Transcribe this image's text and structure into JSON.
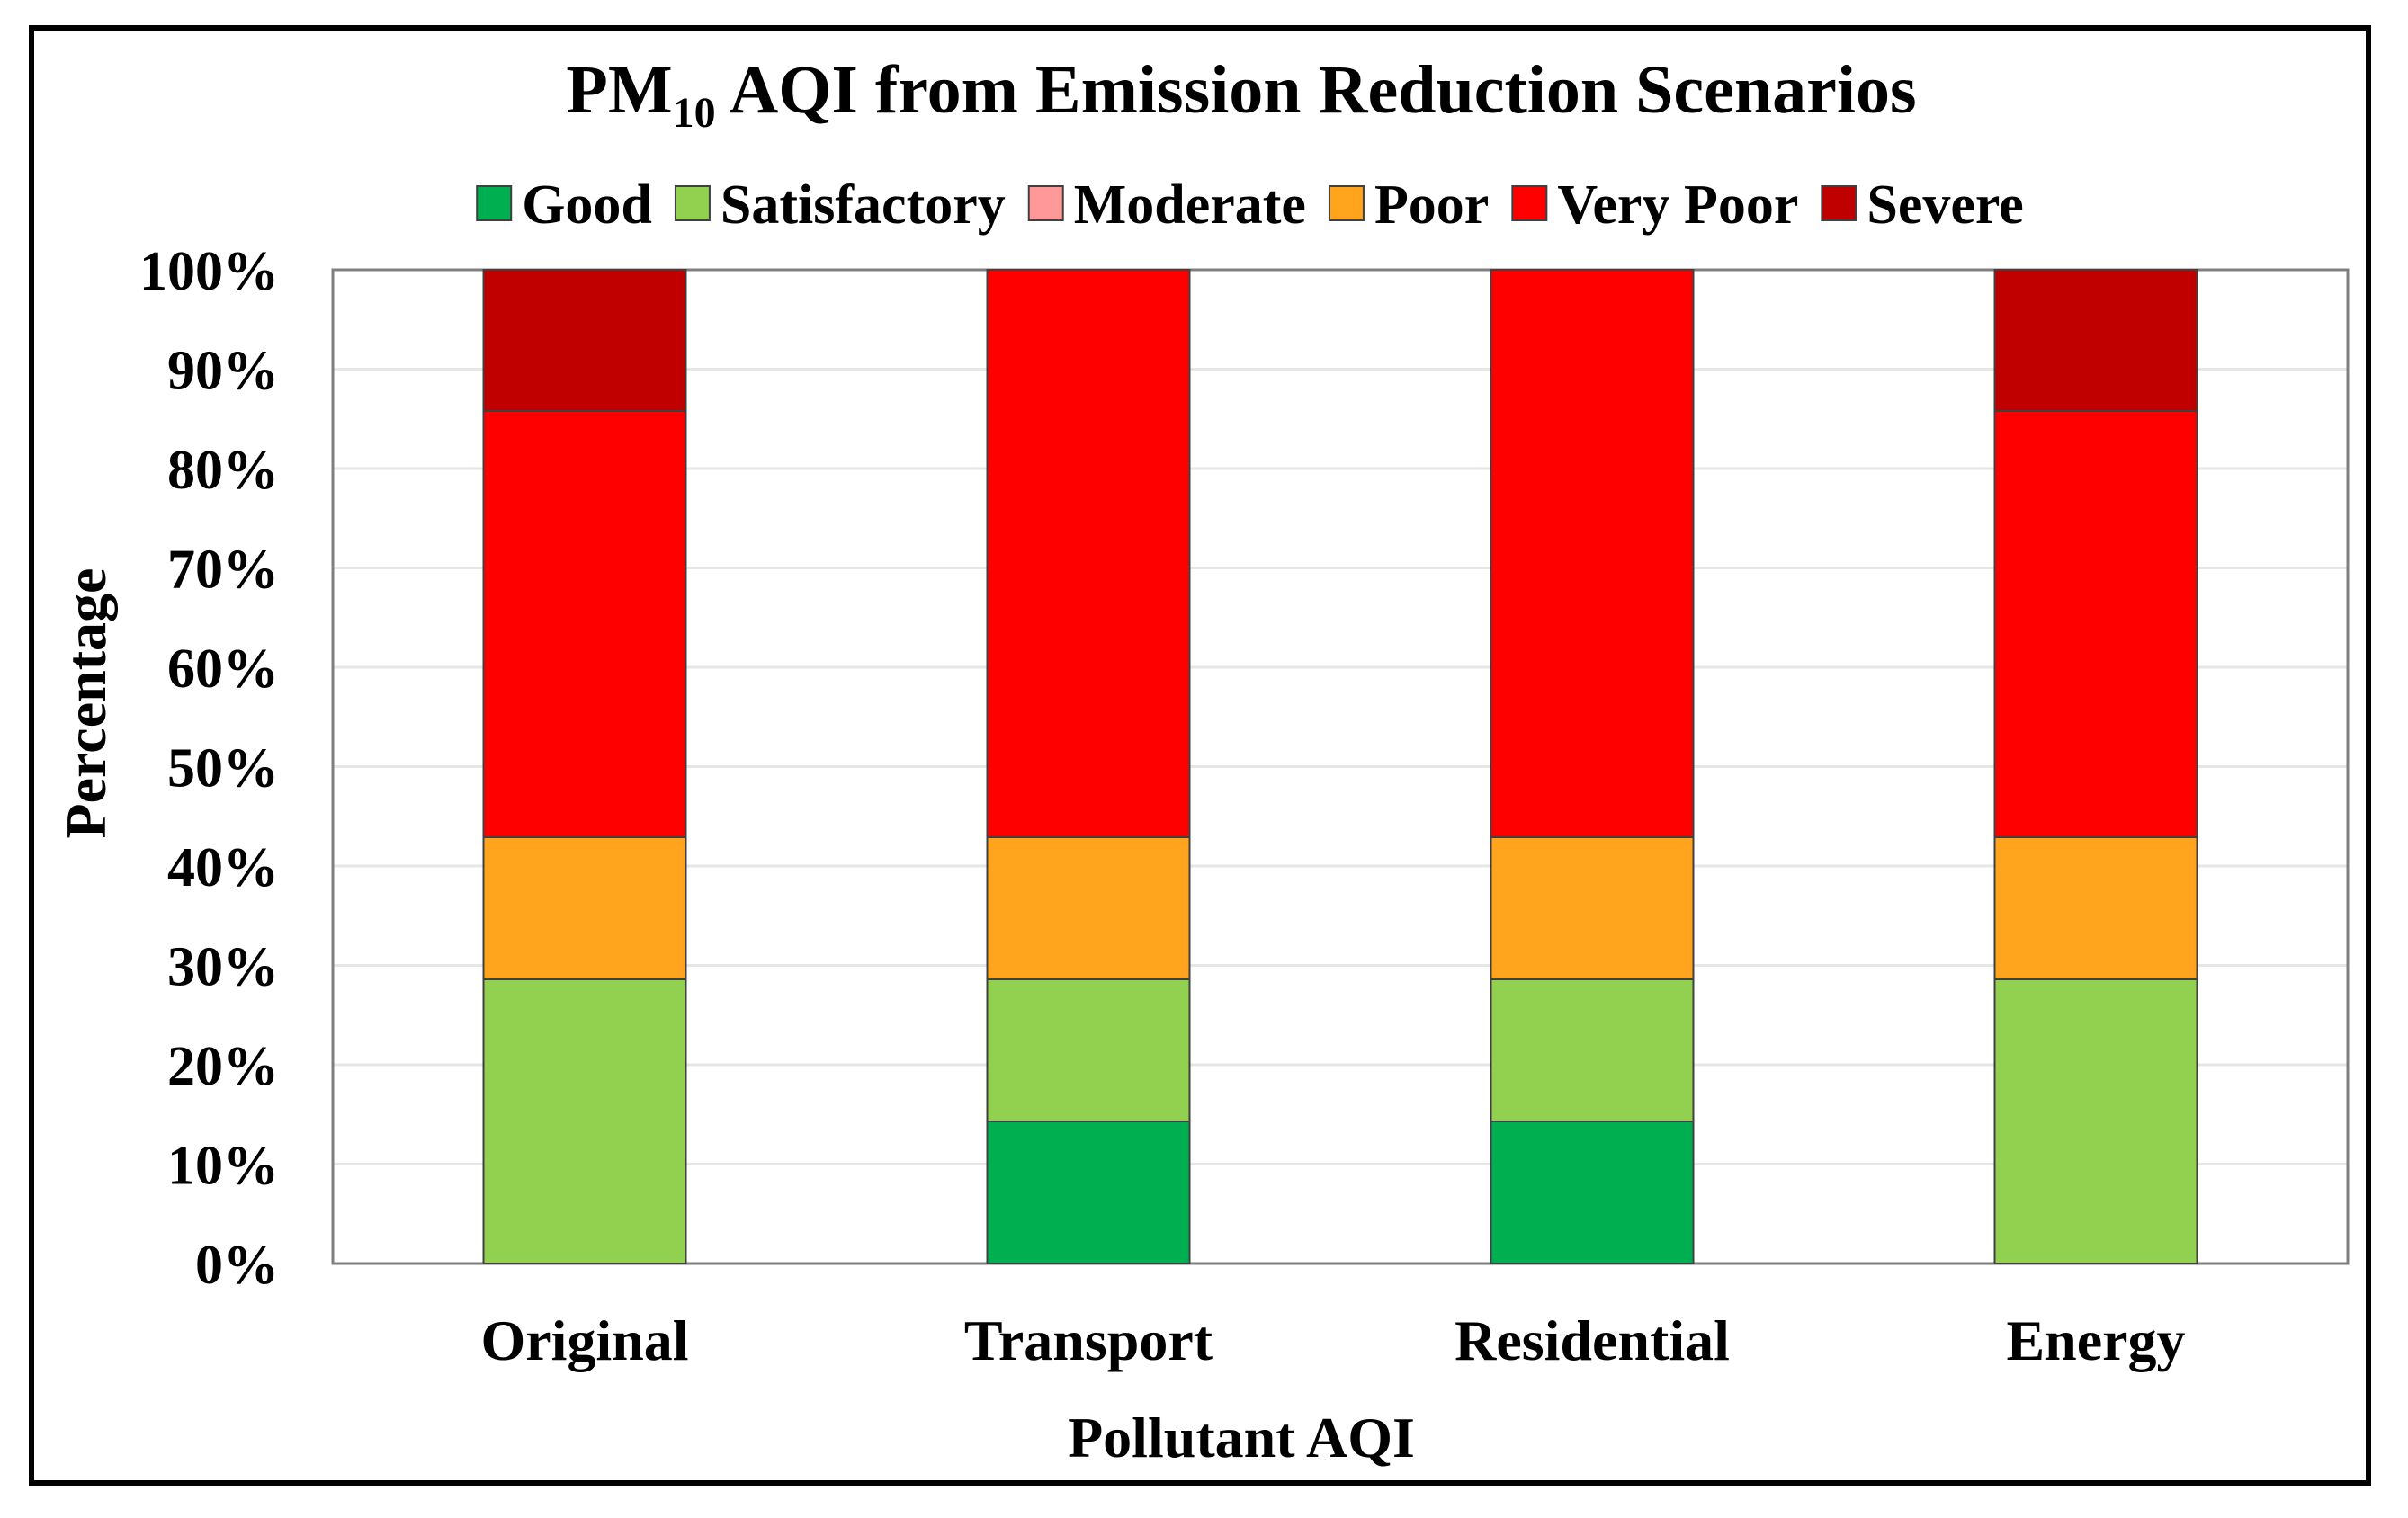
{
  "chart_data": {
    "type": "bar",
    "stacked": true,
    "title_main": "PM",
    "title_sub": "10",
    "title_rest": " AQI from Emission Reduction Scenarios",
    "xlabel": "Pollutant AQI",
    "ylabel": "Percentage",
    "ylim": [
      0,
      100
    ],
    "yticks": [
      "0%",
      "10%",
      "20%",
      "30%",
      "40%",
      "50%",
      "60%",
      "70%",
      "80%",
      "90%",
      "100%"
    ],
    "categories": [
      "Original",
      "Transport",
      "Residential",
      "Energy"
    ],
    "legend_position": "top",
    "grid": true,
    "series": [
      {
        "name": "Good",
        "color": "#00b050",
        "values": [
          0,
          14.3,
          14.3,
          0
        ]
      },
      {
        "name": "Satisfactory",
        "color": "#92d050",
        "values": [
          28.6,
          14.3,
          14.3,
          28.6
        ]
      },
      {
        "name": "Moderate",
        "color": "#ff9999",
        "values": [
          0,
          0,
          0,
          0
        ]
      },
      {
        "name": "Poor",
        "color": "#ffa41c",
        "values": [
          14.3,
          14.3,
          14.3,
          14.3
        ]
      },
      {
        "name": "Very Poor",
        "color": "#ff0000",
        "values": [
          42.9,
          57.1,
          57.1,
          42.9
        ]
      },
      {
        "name": "Severe",
        "color": "#c00000",
        "values": [
          14.2,
          0,
          0,
          14.2
        ]
      }
    ]
  }
}
